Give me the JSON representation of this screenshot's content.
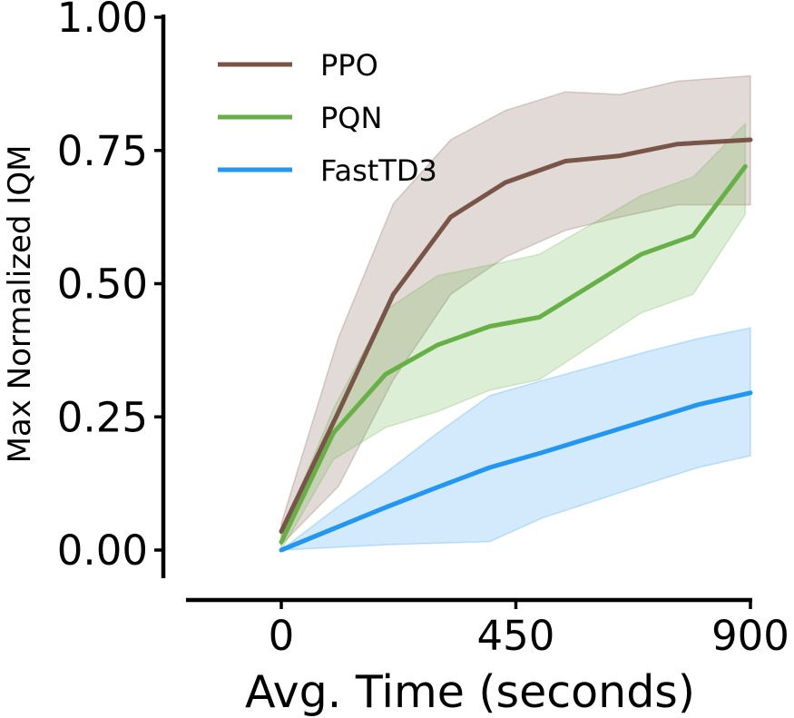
{
  "chart_data": {
    "type": "line",
    "title": "",
    "xlabel": "Avg. Time (seconds)",
    "ylabel": "Max Normalized IQM",
    "xlim": [
      -180,
      900
    ],
    "ylim": [
      -0.05,
      1.0
    ],
    "xticks": [
      0,
      450,
      900
    ],
    "xtick_labels": [
      "0",
      "450",
      "900"
    ],
    "yticks": [
      0.0,
      0.25,
      0.5,
      0.75,
      1.0
    ],
    "ytick_labels": [
      "0.00",
      "0.25",
      "0.50",
      "0.75",
      "1.00"
    ],
    "grid": false,
    "legend_position": "top-left",
    "series": [
      {
        "name": "PPO",
        "color": "#795548",
        "x": [
          0,
          110,
          215,
          325,
          430,
          545,
          650,
          760,
          900
        ],
        "values": [
          0.035,
          0.26,
          0.48,
          0.625,
          0.69,
          0.73,
          0.74,
          0.762,
          0.77
        ],
        "lower": [
          0.01,
          0.12,
          0.32,
          0.48,
          0.55,
          0.6,
          0.625,
          0.648,
          0.648
        ],
        "upper": [
          0.05,
          0.4,
          0.65,
          0.77,
          0.825,
          0.86,
          0.855,
          0.88,
          0.89
        ]
      },
      {
        "name": "PQN",
        "color": "#66B046",
        "x": [
          0,
          100,
          200,
          300,
          400,
          495,
          690,
          790,
          890
        ],
        "values": [
          0.015,
          0.22,
          0.33,
          0.385,
          0.42,
          0.437,
          0.555,
          0.59,
          0.72
        ],
        "lower": [
          0.0,
          0.17,
          0.23,
          0.26,
          0.3,
          0.32,
          0.445,
          0.48,
          0.63
        ],
        "upper": [
          0.03,
          0.265,
          0.45,
          0.515,
          0.535,
          0.555,
          0.665,
          0.7,
          0.8
        ]
      },
      {
        "name": "FastTD3",
        "color": "#2196F3",
        "x": [
          0,
          100,
          200,
          300,
          400,
          500,
          600,
          700,
          800,
          900
        ],
        "values": [
          0.0,
          0.04,
          0.08,
          0.118,
          0.155,
          0.183,
          0.213,
          0.243,
          0.273,
          0.295
        ],
        "lower": [
          0.0,
          0.005,
          0.01,
          0.013,
          0.016,
          0.06,
          0.092,
          0.124,
          0.155,
          0.177
        ],
        "upper": [
          0.0,
          0.075,
          0.145,
          0.22,
          0.29,
          0.318,
          0.345,
          0.372,
          0.397,
          0.417
        ]
      }
    ]
  }
}
